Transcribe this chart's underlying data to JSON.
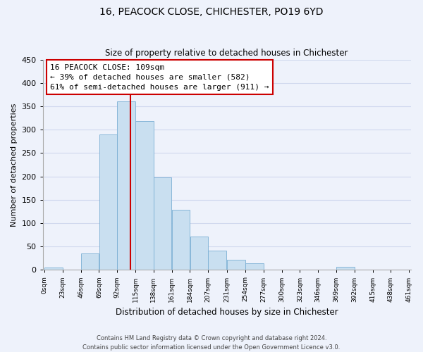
{
  "title": "16, PEACOCK CLOSE, CHICHESTER, PO19 6YD",
  "subtitle": "Size of property relative to detached houses in Chichester",
  "xlabel": "Distribution of detached houses by size in Chichester",
  "ylabel": "Number of detached properties",
  "bar_values": [
    5,
    0,
    35,
    289,
    360,
    318,
    197,
    128,
    71,
    41,
    22,
    14,
    0,
    0,
    0,
    0,
    6,
    0,
    0
  ],
  "bin_edges": [
    0,
    23,
    46,
    69,
    92,
    115,
    138,
    161,
    184,
    207,
    231,
    254,
    277,
    300,
    323,
    346,
    369,
    392,
    415,
    438
  ],
  "tick_labels": [
    "0sqm",
    "23sqm",
    "46sqm",
    "69sqm",
    "92sqm",
    "115sqm",
    "138sqm",
    "161sqm",
    "184sqm",
    "207sqm",
    "231sqm",
    "254sqm",
    "277sqm",
    "300sqm",
    "323sqm",
    "346sqm",
    "369sqm",
    "392sqm",
    "415sqm",
    "438sqm",
    "461sqm"
  ],
  "bar_color": "#c9dff0",
  "bar_edge_color": "#7bafd4",
  "property_size": 109,
  "vline_color": "#cc0000",
  "annotation_line1": "16 PEACOCK CLOSE: 109sqm",
  "annotation_line2": "← 39% of detached houses are smaller (582)",
  "annotation_line3": "61% of semi-detached houses are larger (911) →",
  "annotation_box_color": "#ffffff",
  "annotation_box_edge": "#cc0000",
  "ylim": [
    0,
    450
  ],
  "yticks": [
    0,
    50,
    100,
    150,
    200,
    250,
    300,
    350,
    400,
    450
  ],
  "footer_line1": "Contains HM Land Registry data © Crown copyright and database right 2024.",
  "footer_line2": "Contains public sector information licensed under the Open Government Licence v3.0.",
  "bg_color": "#eef2fb",
  "grid_color": "#d0d8ee"
}
